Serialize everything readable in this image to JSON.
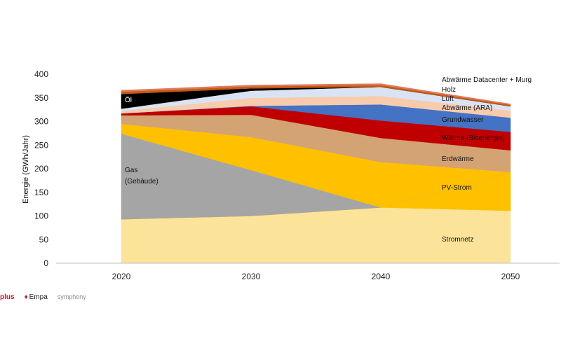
{
  "chart_data": {
    "type": "area",
    "stacked": true,
    "title": "",
    "xlabel": "",
    "ylabel": "Energie (GWh/Jahr)",
    "ylim": [
      0,
      400
    ],
    "yticks": [
      0,
      50,
      100,
      150,
      200,
      250,
      300,
      350,
      400
    ],
    "x": [
      2020,
      2030,
      2040,
      2050
    ],
    "grid": false,
    "series": [
      {
        "name": "Stromnetz",
        "label": "Stromnetz",
        "color": "#fbe49a",
        "values": [
          93,
          100,
          118,
          111
        ]
      },
      {
        "name": "PV-Strom",
        "label": "PV-Strom",
        "color": "#ffc000",
        "values": [
          0,
          0,
          0,
          82
        ]
      },
      {
        "name": "Gas (Gebäude)",
        "label_lines": [
          "Gas",
          "(Gebäude)"
        ],
        "color": "#a5a5a5",
        "values": [
          181,
          97,
          0,
          0
        ]
      },
      {
        "name": "PV-Strom (2020-2040)",
        "label": "",
        "color": "#ffc000",
        "values": [
          21,
          70,
          96,
          0
        ]
      },
      {
        "name": "Erdwärme",
        "label": "Erdwärme",
        "color": "#d4a373",
        "values": [
          18,
          47,
          51,
          46
        ]
      },
      {
        "name": "Wärme (Bioenergie)",
        "label": "Wärme (Bioenergie)",
        "color": "#c00000",
        "values": [
          4,
          18,
          37,
          39
        ]
      },
      {
        "name": "Grundwasser",
        "label": "Grundwasser",
        "color": "#4472c4",
        "values": [
          0,
          1,
          34,
          30
        ]
      },
      {
        "name": "Abwärme (ARA)",
        "label": "Abwärme (ARA)",
        "color": "#f8cbad",
        "values": [
          5,
          17,
          18,
          15
        ]
      },
      {
        "name": "Luft",
        "label": "Luft",
        "color": "#dae3f3",
        "values": [
          5,
          15,
          19,
          9
        ]
      },
      {
        "name": "Öl",
        "label": "Öl",
        "color": "#000000",
        "values": [
          31,
          5,
          0,
          0
        ]
      },
      {
        "name": "Holz",
        "label": "Holz",
        "color": "#c55a11",
        "values": [
          5,
          4,
          4,
          3
        ]
      },
      {
        "name": "Abwärme Datacenter + Murg",
        "label": "Abwärme Datacenter + Murg",
        "color": "#e07a5f",
        "values": [
          3,
          3,
          3,
          2
        ]
      }
    ]
  },
  "logos": {
    "partner1": "plus",
    "partner2": "Empa",
    "partner3": "symphony"
  }
}
